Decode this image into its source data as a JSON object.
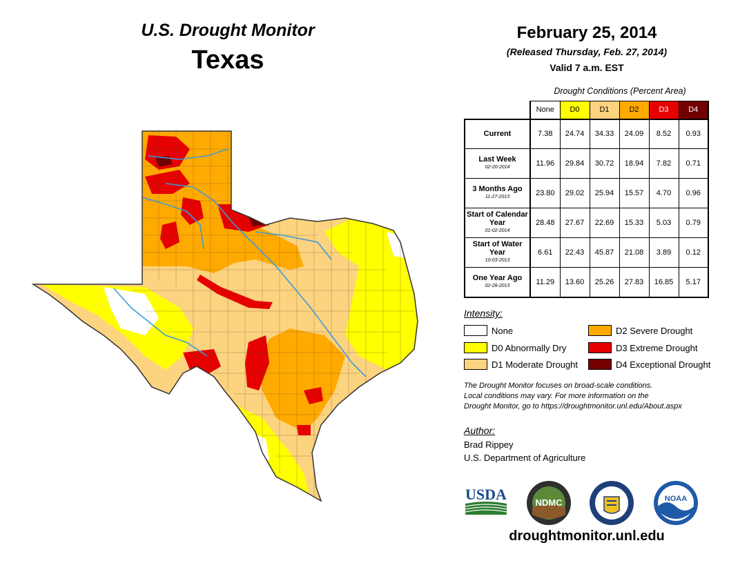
{
  "header": {
    "monitor_title": "U.S. Drought Monitor",
    "state": "Texas"
  },
  "dates": {
    "map_date": "February 25, 2014",
    "released": "(Released Thursday, Feb. 27, 2014)",
    "valid": "Valid 7 a.m. EST"
  },
  "table": {
    "caption": "Drought Conditions (Percent Area)",
    "columns": [
      "None",
      "D0",
      "D1",
      "D2",
      "D3",
      "D4"
    ],
    "rows": [
      {
        "label": "Current",
        "sub": "",
        "values": [
          "7.38",
          "24.74",
          "34.33",
          "24.09",
          "8.52",
          "0.93"
        ]
      },
      {
        "label": "Last Week",
        "sub": "02-20-2014",
        "values": [
          "11.96",
          "29.84",
          "30.72",
          "18.94",
          "7.82",
          "0.71"
        ]
      },
      {
        "label": "3 Months Ago",
        "sub": "11-27-2013",
        "values": [
          "23.80",
          "29.02",
          "25.94",
          "15.57",
          "4.70",
          "0.96"
        ]
      },
      {
        "label": "Start of Calendar Year",
        "sub": "01-02-2014",
        "values": [
          "28.48",
          "27.67",
          "22.69",
          "15.33",
          "5.03",
          "0.79"
        ]
      },
      {
        "label": "Start of Water Year",
        "sub": "10-03-2013",
        "values": [
          "6.61",
          "22.43",
          "45.87",
          "21.08",
          "3.89",
          "0.12"
        ]
      },
      {
        "label": "One Year Ago",
        "sub": "02-28-2013",
        "values": [
          "11.29",
          "13.60",
          "25.26",
          "27.83",
          "16.85",
          "5.17"
        ]
      }
    ]
  },
  "legend": {
    "title": "Intensity:",
    "items": [
      {
        "label": "None",
        "color": "#ffffff"
      },
      {
        "label": "D0 Abnormally Dry",
        "color": "#ffff00"
      },
      {
        "label": "D1 Moderate Drought",
        "color": "#fcd37f"
      },
      {
        "label": "D2 Severe Drought",
        "color": "#ffaa00"
      },
      {
        "label": "D3 Extreme Drought",
        "color": "#e60000"
      },
      {
        "label": "D4 Exceptional Drought",
        "color": "#730000"
      }
    ]
  },
  "note": {
    "line1": "The Drought Monitor focuses on broad-scale conditions.",
    "line2": "Local conditions may vary. For more information on the",
    "line3": "Drought Monitor, go to https://droughtmonitor.unl.edu/About.aspx"
  },
  "author": {
    "title": "Author:",
    "name": "Brad Rippey",
    "organization": "U.S. Department of Agriculture"
  },
  "logos": {
    "usda": "USDA",
    "ndmc": "NDMC",
    "noaa": "NOAA"
  },
  "footer": {
    "url": "droughtmonitor.unl.edu"
  },
  "colors": {
    "none": "#ffffff",
    "d0": "#ffff00",
    "d1": "#fcd37f",
    "d2": "#ffaa00",
    "d3": "#e60000",
    "d4": "#730000",
    "river": "#3d9bd8"
  }
}
